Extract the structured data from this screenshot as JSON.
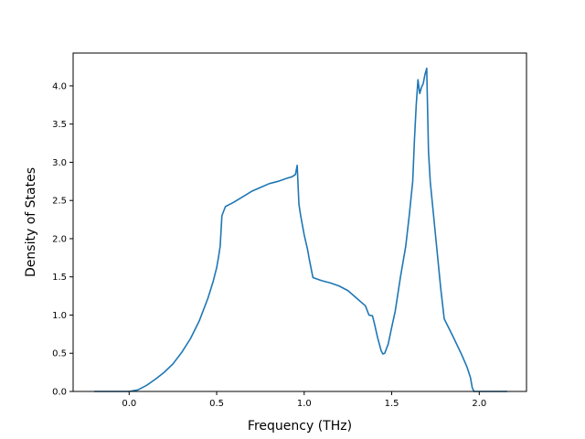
{
  "chart_data": {
    "type": "line",
    "title": "",
    "xlabel": "Frequency (THz)",
    "ylabel": "Density of States",
    "xlim": [
      -0.32,
      2.27
    ],
    "ylim": [
      0.0,
      4.43
    ],
    "x_ticks": [
      0.0,
      0.5,
      1.0,
      1.5,
      2.0
    ],
    "x_tick_labels": [
      "0.0",
      "0.5",
      "1.0",
      "1.5",
      "2.0"
    ],
    "y_ticks": [
      0.0,
      0.5,
      1.0,
      1.5,
      2.0,
      2.5,
      3.0,
      3.5,
      4.0
    ],
    "y_tick_labels": [
      "0.0",
      "0.5",
      "1.0",
      "1.5",
      "2.0",
      "2.5",
      "3.0",
      "3.5",
      "4.0"
    ],
    "grid": false,
    "legend": "none",
    "series": [
      {
        "color": "#1f77b4",
        "x": [
          -0.2,
          0.0,
          0.05,
          0.1,
          0.15,
          0.2,
          0.25,
          0.3,
          0.35,
          0.4,
          0.45,
          0.48,
          0.5,
          0.51,
          0.52,
          0.53,
          0.55,
          0.6,
          0.65,
          0.7,
          0.75,
          0.8,
          0.85,
          0.9,
          0.93,
          0.95,
          0.96,
          0.97,
          0.98,
          1.0,
          1.02,
          1.03,
          1.05,
          1.1,
          1.15,
          1.2,
          1.25,
          1.3,
          1.35,
          1.37,
          1.39,
          1.4,
          1.42,
          1.44,
          1.45,
          1.46,
          1.48,
          1.5,
          1.52,
          1.55,
          1.58,
          1.6,
          1.62,
          1.63,
          1.64,
          1.65,
          1.66,
          1.67,
          1.68,
          1.69,
          1.7,
          1.71,
          1.72,
          1.75,
          1.78,
          1.8,
          1.85,
          1.9,
          1.93,
          1.95,
          1.96,
          1.97,
          1.98,
          2.0,
          2.05,
          2.1,
          2.16
        ],
        "y": [
          0.0,
          0.0,
          0.02,
          0.08,
          0.16,
          0.25,
          0.36,
          0.51,
          0.69,
          0.92,
          1.22,
          1.44,
          1.62,
          1.75,
          1.9,
          2.3,
          2.42,
          2.48,
          2.55,
          2.62,
          2.67,
          2.72,
          2.75,
          2.79,
          2.81,
          2.84,
          2.96,
          2.45,
          2.3,
          2.05,
          1.85,
          1.72,
          1.49,
          1.45,
          1.42,
          1.38,
          1.32,
          1.22,
          1.12,
          1.0,
          0.99,
          0.9,
          0.7,
          0.53,
          0.49,
          0.5,
          0.62,
          0.84,
          1.05,
          1.5,
          1.9,
          2.3,
          2.75,
          3.3,
          3.75,
          4.08,
          3.9,
          3.98,
          4.03,
          4.15,
          4.23,
          3.15,
          2.75,
          2.05,
          1.35,
          0.95,
          0.72,
          0.48,
          0.32,
          0.18,
          0.05,
          0.0,
          0.0,
          0.0,
          0.0,
          0.0,
          0.0
        ]
      }
    ]
  }
}
